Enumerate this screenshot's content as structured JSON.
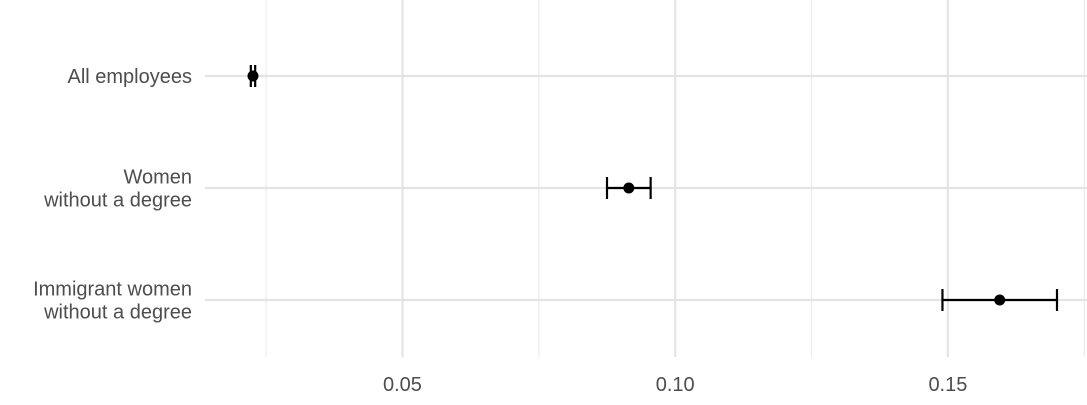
{
  "chart_data": {
    "type": "dot-errorbar",
    "title": "",
    "xlabel": "",
    "ylabel": "",
    "xlim": [
      0.0138,
      0.1755
    ],
    "x_ticks": [
      0.05,
      0.1,
      0.15
    ],
    "x_tick_labels": [
      "0.05",
      "0.10",
      "0.15"
    ],
    "grid": true,
    "categories": [
      {
        "label_lines": [
          "All employees"
        ],
        "estimate": 0.0226,
        "lower": 0.0222,
        "upper": 0.023
      },
      {
        "label_lines": [
          "Women",
          "without a degree"
        ],
        "estimate": 0.0915,
        "lower": 0.0875,
        "upper": 0.0955
      },
      {
        "label_lines": [
          "Immigrant women",
          "without a degree"
        ],
        "estimate": 0.1595,
        "lower": 0.149,
        "upper": 0.17
      }
    ]
  }
}
